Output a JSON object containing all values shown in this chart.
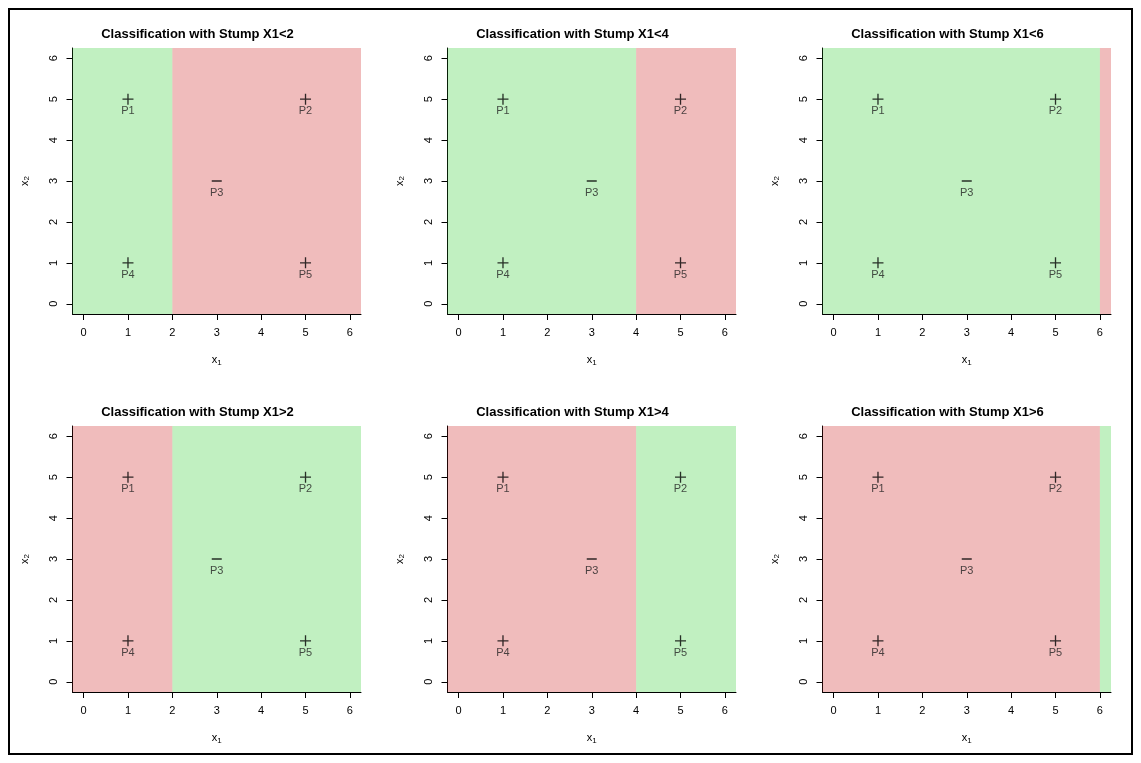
{
  "chart_data": [
    {
      "type": "scatter",
      "title": "Classification with Stump X1<2",
      "xlabel": "x$_{1}$",
      "ylabel": "x$_{2}$",
      "xlim": [
        -0.25,
        6.25
      ],
      "ylim": [
        -0.25,
        6.25
      ],
      "xticks": [
        0,
        1,
        2,
        3,
        4,
        5,
        6
      ],
      "yticks": [
        0,
        1,
        2,
        3,
        4,
        5,
        6
      ],
      "grid": false,
      "bands": [
        {
          "axis": "x",
          "from": -0.25,
          "to": 2,
          "color": "#33cc33"
        },
        {
          "axis": "x",
          "from": 2,
          "to": 6.25,
          "color": "#cc2222"
        }
      ],
      "series": [
        {
          "color": "#000000",
          "marker": "cross",
          "x": [
            1,
            5,
            1,
            5
          ],
          "values": [
            5,
            5,
            1,
            1
          ],
          "value_labels": [
            "P1",
            "P2",
            "P4",
            "P5"
          ]
        },
        {
          "color": "#000000",
          "x": [
            3
          ],
          "values": [
            3
          ],
          "value_labels": [
            "P3"
          ]
        }
      ]
    },
    {
      "type": "scatter",
      "title": "Classification with Stump X1<4",
      "xlabel": "x$_{1}$",
      "ylabel": "x$_{2}$",
      "xlim": [
        -0.25,
        6.25
      ],
      "ylim": [
        -0.25,
        6.25
      ],
      "xticks": [
        0,
        1,
        2,
        3,
        4,
        5,
        6
      ],
      "yticks": [
        0,
        1,
        2,
        3,
        4,
        5,
        6
      ],
      "grid": false,
      "bands": [
        {
          "axis": "x",
          "from": -0.25,
          "to": 4,
          "color": "#33cc33"
        },
        {
          "axis": "x",
          "from": 4,
          "to": 6.25,
          "color": "#cc2222"
        }
      ],
      "series": [
        {
          "color": "#000000",
          "marker": "cross",
          "x": [
            1,
            5,
            1,
            5
          ],
          "values": [
            5,
            5,
            1,
            1
          ],
          "value_labels": [
            "P1",
            "P2",
            "P4",
            "P5"
          ]
        },
        {
          "color": "#000000",
          "x": [
            3
          ],
          "values": [
            3
          ],
          "value_labels": [
            "P3"
          ]
        }
      ]
    },
    {
      "type": "scatter",
      "title": "Classification with Stump X1<6",
      "xlabel": "x$_{1}$",
      "ylabel": "x$_{2}$",
      "xlim": [
        -0.25,
        6.25
      ],
      "ylim": [
        -0.25,
        6.25
      ],
      "xticks": [
        0,
        1,
        2,
        3,
        4,
        5,
        6
      ],
      "yticks": [
        0,
        1,
        2,
        3,
        4,
        5,
        6
      ],
      "grid": false,
      "bands": [
        {
          "axis": "x",
          "from": -0.25,
          "to": 6,
          "color": "#33cc33"
        },
        {
          "axis": "x",
          "from": 6,
          "to": 6.25,
          "color": "#cc2222"
        }
      ],
      "series": [
        {
          "color": "#000000",
          "marker": "cross",
          "x": [
            1,
            5,
            1,
            5
          ],
          "values": [
            5,
            5,
            1,
            1
          ],
          "value_labels": [
            "P1",
            "P2",
            "P4",
            "P5"
          ]
        },
        {
          "color": "#000000",
          "x": [
            3
          ],
          "values": [
            3
          ],
          "value_labels": [
            "P3"
          ]
        }
      ]
    },
    {
      "type": "scatter",
      "title": "Classification with Stump X1>2",
      "xlabel": "x$_{1}$",
      "ylabel": "x$_{2}$",
      "xlim": [
        -0.25,
        6.25
      ],
      "ylim": [
        -0.25,
        6.25
      ],
      "xticks": [
        0,
        1,
        2,
        3,
        4,
        5,
        6
      ],
      "yticks": [
        0,
        1,
        2,
        3,
        4,
        5,
        6
      ],
      "grid": false,
      "bands": [
        {
          "axis": "x",
          "from": -0.25,
          "to": 2,
          "color": "#cc2222"
        },
        {
          "axis": "x",
          "from": 2,
          "to": 6.25,
          "color": "#33cc33"
        }
      ],
      "series": [
        {
          "color": "#000000",
          "marker": "cross",
          "x": [
            1,
            5,
            1,
            5
          ],
          "values": [
            5,
            5,
            1,
            1
          ],
          "value_labels": [
            "P1",
            "P2",
            "P4",
            "P5"
          ]
        },
        {
          "color": "#000000",
          "x": [
            3
          ],
          "values": [
            3
          ],
          "value_labels": [
            "P3"
          ]
        }
      ]
    },
    {
      "type": "scatter",
      "title": "Classification with Stump X1>4",
      "xlabel": "x$_{1}$",
      "ylabel": "x$_{2}$",
      "xlim": [
        -0.25,
        6.25
      ],
      "ylim": [
        -0.25,
        6.25
      ],
      "xticks": [
        0,
        1,
        2,
        3,
        4,
        5,
        6
      ],
      "yticks": [
        0,
        1,
        2,
        3,
        4,
        5,
        6
      ],
      "grid": false,
      "bands": [
        {
          "axis": "x",
          "from": -0.25,
          "to": 4,
          "color": "#cc2222"
        },
        {
          "axis": "x",
          "from": 4,
          "to": 6.25,
          "color": "#33cc33"
        }
      ],
      "series": [
        {
          "color": "#000000",
          "marker": "cross",
          "x": [
            1,
            5,
            1,
            5
          ],
          "values": [
            5,
            5,
            1,
            1
          ],
          "value_labels": [
            "P1",
            "P2",
            "P4",
            "P5"
          ]
        },
        {
          "color": "#000000",
          "x": [
            3
          ],
          "values": [
            3
          ],
          "value_labels": [
            "P3"
          ]
        }
      ]
    },
    {
      "type": "scatter",
      "title": "Classification with Stump X1>6",
      "xlabel": "x$_{1}$",
      "ylabel": "x$_{2}$",
      "xlim": [
        -0.25,
        6.25
      ],
      "ylim": [
        -0.25,
        6.25
      ],
      "xticks": [
        0,
        1,
        2,
        3,
        4,
        5,
        6
      ],
      "yticks": [
        0,
        1,
        2,
        3,
        4,
        5,
        6
      ],
      "grid": false,
      "bands": [
        {
          "axis": "x",
          "from": -0.25,
          "to": 6,
          "color": "#cc2222"
        },
        {
          "axis": "x",
          "from": 6,
          "to": 6.25,
          "color": "#33cc33"
        }
      ],
      "series": [
        {
          "color": "#000000",
          "marker": "cross",
          "x": [
            1,
            5,
            1,
            5
          ],
          "values": [
            5,
            5,
            1,
            1
          ],
          "value_labels": [
            "P1",
            "P2",
            "P4",
            "P5"
          ]
        },
        {
          "color": "#000000",
          "x": [
            3
          ],
          "values": [
            3
          ],
          "value_labels": [
            "P3"
          ]
        }
      ]
    }
  ]
}
